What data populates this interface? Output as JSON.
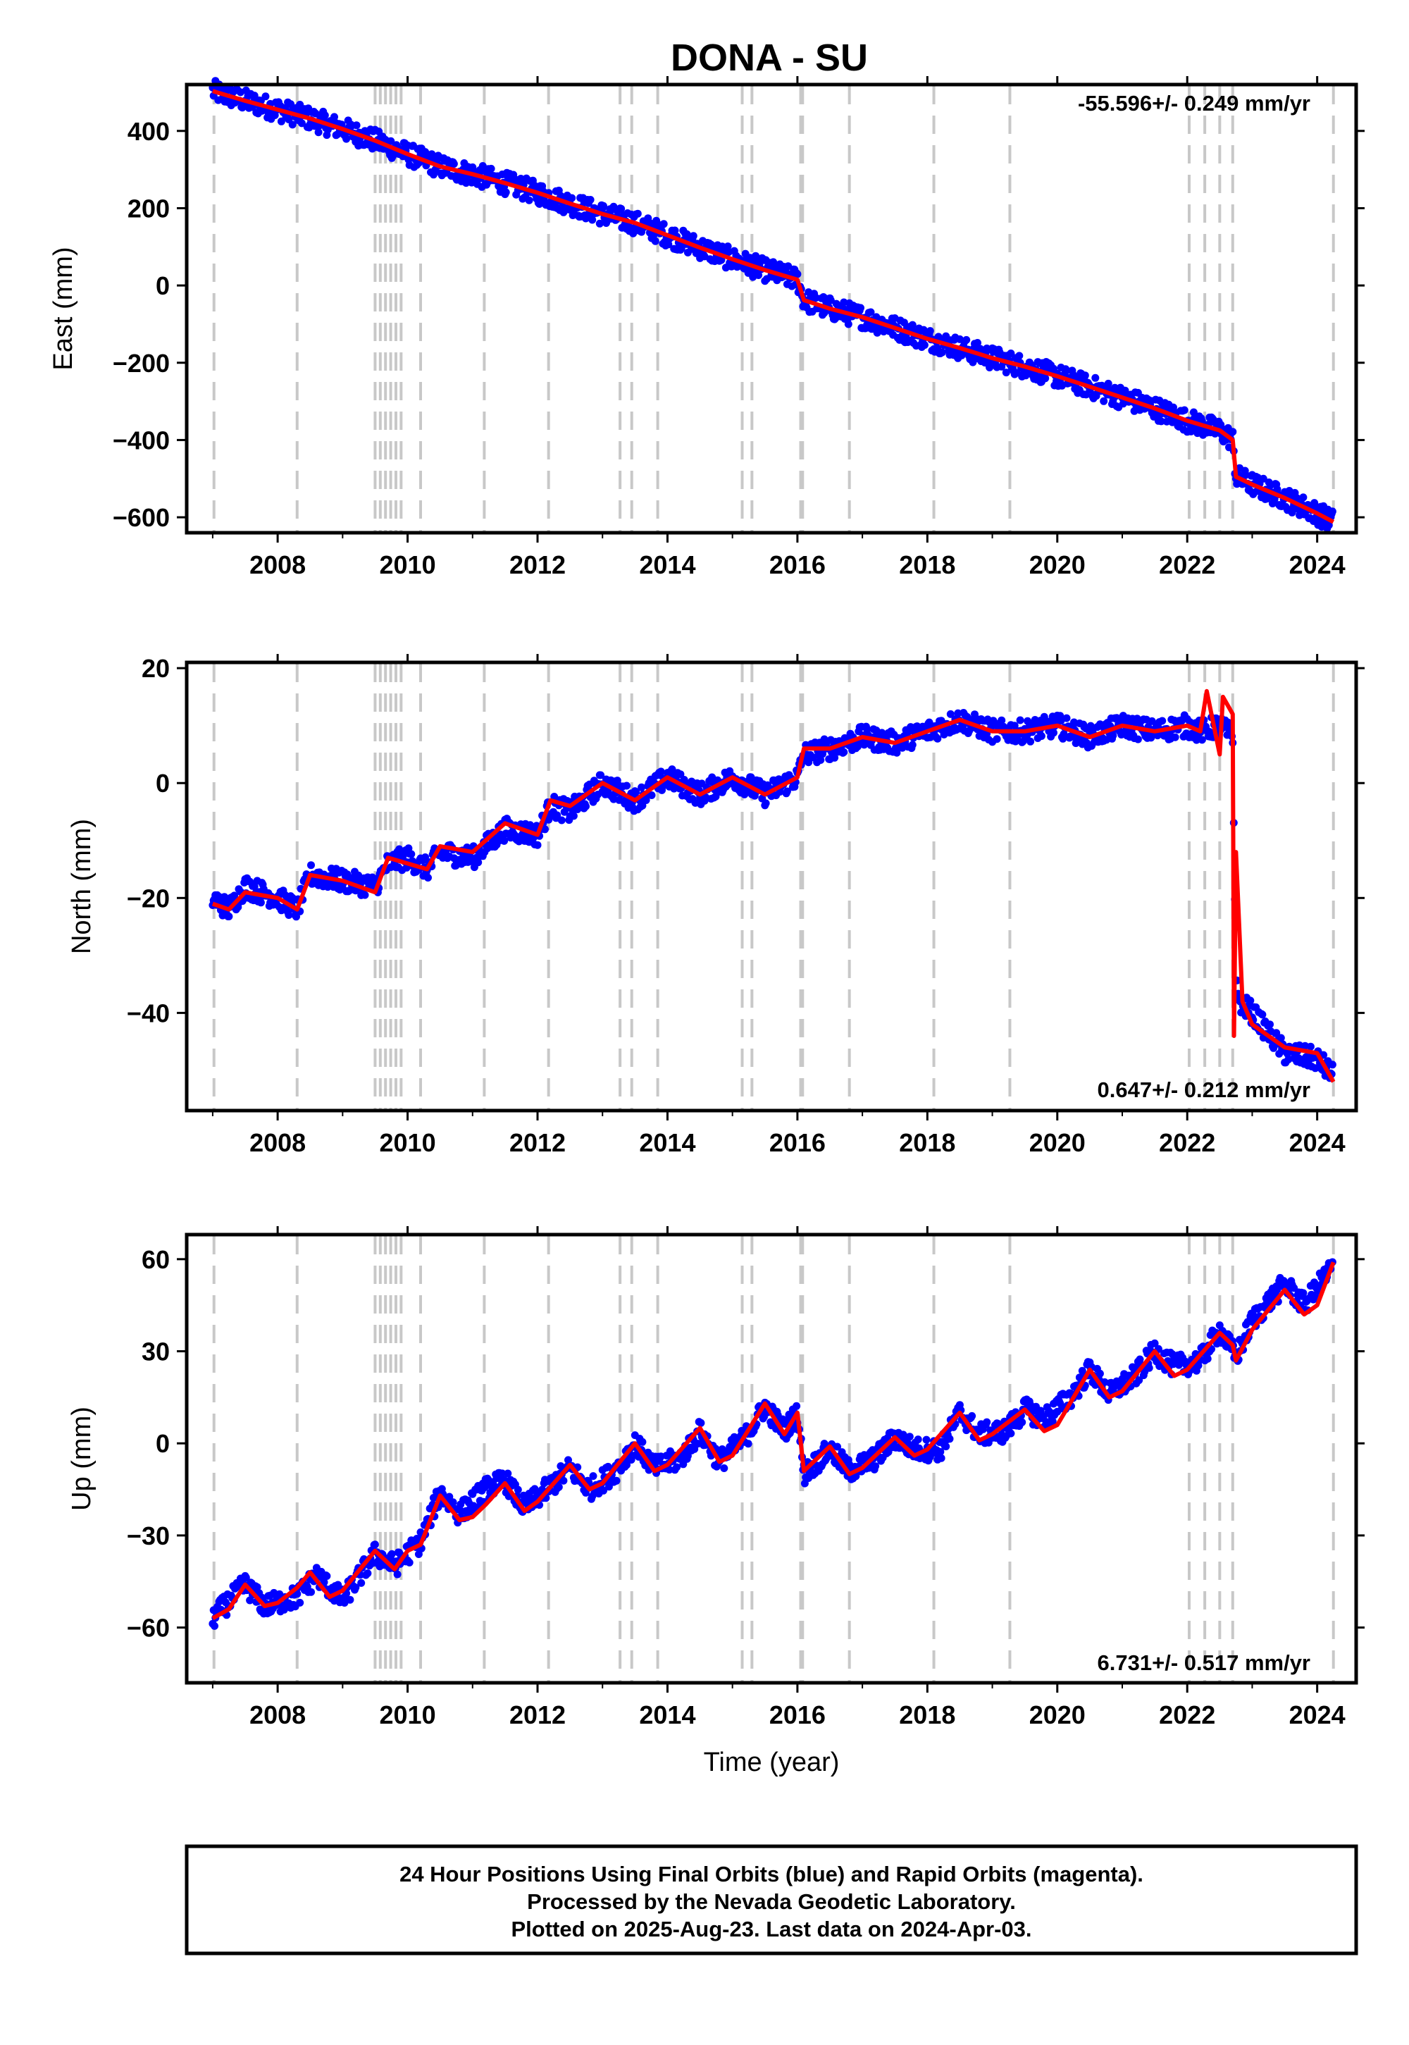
{
  "title": "DONA - SU",
  "xlabel": "Time (year)",
  "footer": {
    "line1": "24 Hour Positions Using Final Orbits (blue) and Rapid Orbits (magenta).",
    "line2": "Processed by the Nevada Geodetic Laboratory.",
    "line3": "Plotted on 2025-Aug-23. Last data on 2024-Apr-03."
  },
  "colors": {
    "points": "#0000ff",
    "model": "#ff0000",
    "events": "#c8c8c8"
  },
  "chart_data": [
    {
      "type": "scatter",
      "panel": "east",
      "ylabel": "East (mm)",
      "rate_text": "-55.596+/- 0.249 mm/yr",
      "rate_position": "top-right",
      "xlim": [
        2006.6,
        2024.6
      ],
      "ylim": [
        -640,
        520
      ],
      "x_ticks": [
        "2008",
        "2010",
        "2012",
        "2014",
        "2016",
        "2018",
        "2020",
        "2022",
        "2024"
      ],
      "y_ticks": [
        "400",
        "200",
        "0",
        "−200",
        "−400",
        "−600"
      ],
      "series": [
        {
          "role": "data_points",
          "x": [
            2007.0,
            2007.5,
            2008.0,
            2008.5,
            2009.0,
            2009.5,
            2010.0,
            2010.5,
            2011.0,
            2011.5,
            2012.0,
            2012.5,
            2013.0,
            2013.5,
            2014.0,
            2014.5,
            2015.0,
            2015.5,
            2016.0,
            2016.1,
            2016.5,
            2017.0,
            2017.5,
            2018.0,
            2018.5,
            2019.0,
            2019.5,
            2020.0,
            2020.5,
            2021.0,
            2021.5,
            2022.0,
            2022.5,
            2022.7,
            2022.75,
            2023.0,
            2023.5,
            2024.0,
            2024.25
          ],
          "y": [
            503,
            478,
            455,
            432,
            405,
            375,
            340,
            308,
            288,
            265,
            240,
            212,
            185,
            162,
            130,
            98,
            68,
            40,
            15,
            -38,
            -60,
            -82,
            -110,
            -138,
            -162,
            -188,
            -210,
            -235,
            -262,
            -290,
            -318,
            -350,
            -375,
            -400,
            -495,
            -515,
            -550,
            -590,
            -612
          ]
        },
        {
          "role": "model",
          "x": [
            2007.0,
            2007.5,
            2008.0,
            2008.5,
            2009.0,
            2009.5,
            2010.0,
            2010.5,
            2011.0,
            2011.5,
            2012.0,
            2012.5,
            2013.0,
            2013.5,
            2014.0,
            2014.5,
            2015.0,
            2015.5,
            2016.0,
            2016.1,
            2016.5,
            2017.0,
            2017.5,
            2018.0,
            2018.5,
            2019.0,
            2019.5,
            2020.0,
            2020.5,
            2021.0,
            2021.5,
            2022.0,
            2022.5,
            2022.7,
            2022.75,
            2023.0,
            2023.5,
            2024.0,
            2024.25
          ],
          "y": [
            503,
            478,
            455,
            432,
            405,
            375,
            340,
            308,
            288,
            265,
            240,
            212,
            185,
            162,
            130,
            98,
            68,
            40,
            15,
            -38,
            -60,
            -82,
            -110,
            -138,
            -162,
            -188,
            -210,
            -235,
            -262,
            -290,
            -318,
            -350,
            -375,
            -400,
            -495,
            -515,
            -550,
            -590,
            -612
          ]
        }
      ]
    },
    {
      "type": "scatter",
      "panel": "north",
      "ylabel": "North (mm)",
      "rate_text": "0.647+/- 0.212 mm/yr",
      "rate_position": "bottom-right",
      "xlim": [
        2006.6,
        2024.6
      ],
      "ylim": [
        -57,
        21
      ],
      "x_ticks": [
        "2008",
        "2010",
        "2012",
        "2014",
        "2016",
        "2018",
        "2020",
        "2022",
        "2024"
      ],
      "y_ticks": [
        "20",
        "0",
        "−20",
        "−40"
      ],
      "series": [
        {
          "role": "data_points",
          "x": [
            2007.0,
            2007.25,
            2007.5,
            2008.0,
            2008.3,
            2008.5,
            2009.0,
            2009.5,
            2009.7,
            2010.0,
            2010.3,
            2010.5,
            2011.0,
            2011.5,
            2012.0,
            2012.2,
            2012.5,
            2013.0,
            2013.5,
            2014.0,
            2014.5,
            2015.0,
            2015.5,
            2016.0,
            2016.1,
            2016.5,
            2017.0,
            2017.5,
            2018.0,
            2018.5,
            2019.0,
            2019.5,
            2020.0,
            2020.5,
            2021.0,
            2021.5,
            2022.0,
            2022.2,
            2022.5,
            2022.7,
            2022.75,
            2022.8,
            2023.0,
            2023.5,
            2024.0,
            2024.25
          ],
          "y": [
            -20,
            -22,
            -18,
            -20,
            -22,
            -16,
            -17,
            -18,
            -14,
            -13,
            -15,
            -12,
            -13,
            -8,
            -9,
            -4,
            -5,
            0,
            -3,
            1,
            -2,
            1,
            -2,
            1,
            5,
            6,
            8,
            7,
            9,
            11,
            9,
            9,
            10,
            8,
            10,
            9,
            10,
            9,
            10,
            8,
            -35,
            -38,
            -40,
            -47,
            -48,
            -51
          ]
        },
        {
          "role": "model",
          "x": [
            2007.0,
            2007.25,
            2007.5,
            2008.0,
            2008.3,
            2008.5,
            2009.0,
            2009.5,
            2009.7,
            2010.0,
            2010.3,
            2010.5,
            2011.0,
            2011.5,
            2012.0,
            2012.2,
            2012.5,
            2013.0,
            2013.5,
            2014.0,
            2014.5,
            2015.0,
            2015.5,
            2016.0,
            2016.1,
            2016.5,
            2017.0,
            2017.5,
            2018.0,
            2018.5,
            2019.0,
            2019.5,
            2020.0,
            2020.5,
            2021.0,
            2021.5,
            2022.0,
            2022.2,
            2022.3,
            2022.5,
            2022.55,
            2022.7,
            2022.72,
            2022.75,
            2022.85,
            2023.0,
            2023.5,
            2024.0,
            2024.25
          ],
          "y": [
            -21,
            -22,
            -19,
            -20,
            -22,
            -16,
            -17,
            -19,
            -13,
            -14,
            -15,
            -11,
            -12,
            -7,
            -9,
            -3,
            -4,
            0,
            -3,
            1,
            -2,
            1,
            -2,
            1,
            6,
            6,
            8,
            7,
            9,
            11,
            9,
            9,
            10,
            8,
            10,
            9,
            10,
            9,
            16,
            5,
            15,
            12,
            -44,
            -12,
            -38,
            -42,
            -46,
            -47,
            -52
          ]
        }
      ]
    },
    {
      "type": "scatter",
      "panel": "up",
      "ylabel": "Up (mm)",
      "rate_text": "6.731+/- 0.517 mm/yr",
      "rate_position": "bottom-right",
      "xlim": [
        2006.6,
        2024.6
      ],
      "ylim": [
        -78,
        68
      ],
      "x_ticks": [
        "2008",
        "2010",
        "2012",
        "2014",
        "2016",
        "2018",
        "2020",
        "2022",
        "2024"
      ],
      "y_ticks": [
        "60",
        "30",
        "0",
        "−30",
        "−60"
      ],
      "series": [
        {
          "role": "data_points",
          "x": [
            2007.0,
            2007.5,
            2007.8,
            2008.3,
            2008.6,
            2009.0,
            2009.5,
            2009.8,
            2010.2,
            2010.5,
            2010.8,
            2011.2,
            2011.5,
            2011.8,
            2012.2,
            2012.5,
            2012.8,
            2013.2,
            2013.5,
            2013.8,
            2014.2,
            2014.5,
            2014.8,
            2015.2,
            2015.5,
            2015.8,
            2016.0,
            2016.1,
            2016.5,
            2016.8,
            2017.2,
            2017.5,
            2017.8,
            2018.2,
            2018.5,
            2018.8,
            2019.2,
            2019.5,
            2019.8,
            2020.2,
            2020.5,
            2020.8,
            2021.2,
            2021.5,
            2021.8,
            2022.2,
            2022.5,
            2022.75,
            2023.0,
            2023.5,
            2023.8,
            2024.25
          ],
          "y": [
            -57,
            -46,
            -53,
            -50,
            -43,
            -51,
            -36,
            -40,
            -32,
            -16,
            -23,
            -15,
            -12,
            -21,
            -14,
            -8,
            -15,
            -9,
            0,
            -8,
            -5,
            4,
            -6,
            2,
            12,
            4,
            10,
            -10,
            -2,
            -9,
            -5,
            2,
            -2,
            -2,
            10,
            3,
            4,
            11,
            8,
            15,
            24,
            16,
            22,
            30,
            25,
            27,
            37,
            28,
            40,
            52,
            45,
            58
          ]
        },
        {
          "role": "model",
          "x": [
            2007.0,
            2007.25,
            2007.5,
            2007.8,
            2008.0,
            2008.3,
            2008.5,
            2008.8,
            2009.0,
            2009.5,
            2009.8,
            2010.0,
            2010.2,
            2010.5,
            2010.8,
            2011.0,
            2011.2,
            2011.5,
            2011.8,
            2012.0,
            2012.5,
            2012.8,
            2013.0,
            2013.5,
            2013.8,
            2014.0,
            2014.5,
            2014.8,
            2015.0,
            2015.5,
            2015.8,
            2016.0,
            2016.1,
            2016.5,
            2016.8,
            2017.0,
            2017.5,
            2017.8,
            2018.0,
            2018.5,
            2018.8,
            2019.0,
            2019.5,
            2019.8,
            2020.0,
            2020.5,
            2020.8,
            2021.0,
            2021.5,
            2021.8,
            2022.0,
            2022.5,
            2022.7,
            2022.75,
            2023.0,
            2023.5,
            2023.8,
            2024.0,
            2024.25
          ],
          "y": [
            -57,
            -54,
            -46,
            -53,
            -52,
            -47,
            -42,
            -50,
            -48,
            -35,
            -41,
            -35,
            -33,
            -17,
            -25,
            -24,
            -20,
            -13,
            -22,
            -19,
            -7,
            -15,
            -13,
            0,
            -9,
            -7,
            5,
            -6,
            -4,
            13,
            3,
            10,
            -9,
            -1,
            -10,
            -8,
            2,
            -4,
            -2,
            10,
            1,
            3,
            11,
            4,
            6,
            24,
            15,
            17,
            30,
            22,
            24,
            36,
            32,
            27,
            37,
            50,
            42,
            45,
            59
          ]
        }
      ]
    }
  ],
  "event_years": [
    2007.02,
    2008.3,
    2009.5,
    2009.58,
    2009.66,
    2009.74,
    2009.82,
    2009.9,
    2010.2,
    2011.18,
    2012.17,
    2013.27,
    2013.45,
    2013.85,
    2015.15,
    2015.3,
    2016.05,
    2016.08,
    2016.8,
    2018.1,
    2019.27,
    2022.03,
    2022.27,
    2022.5,
    2022.7,
    2024.25
  ]
}
